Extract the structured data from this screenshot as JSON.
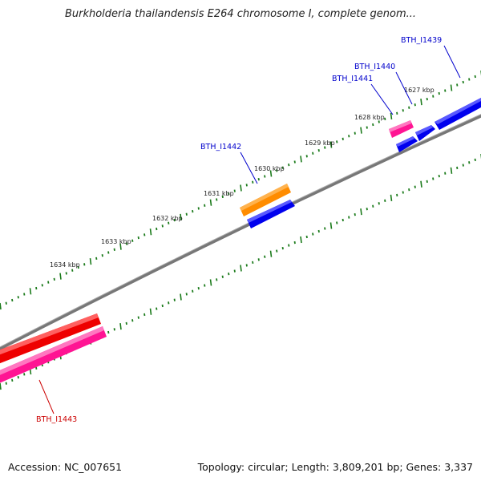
{
  "title": "Burkholderia thailandensis E264 chromosome I, complete genom...",
  "footer": {
    "accession": "Accession: NC_007651",
    "topology": "Topology: circular; Length: 3,809,201 bp; Genes: 3,337"
  },
  "ticks": [
    "1627 kbp",
    "1628 kbp",
    "1629 kbp",
    "1630 kbp",
    "1631 kbp",
    "1632 kbp",
    "1633 kbp",
    "1634 kbp"
  ],
  "genes": [
    {
      "name": "BTH_I1439",
      "color": "#0000cc"
    },
    {
      "name": "BTH_I1440",
      "color": "#0000cc"
    },
    {
      "name": "BTH_I1441",
      "color": "#0000cc"
    },
    {
      "name": "BTH_I1442",
      "color": "#0000cc"
    },
    {
      "name": "BTH_I1443",
      "color": "#cc0000"
    }
  ],
  "colors": {
    "backbone": "#808080",
    "tick": "#1a7a1a",
    "forward_gene": "#0000ee",
    "reverse_gene": "#ee0000",
    "pink_feature": "#ff1493",
    "orange_feature": "#ff8c00"
  }
}
